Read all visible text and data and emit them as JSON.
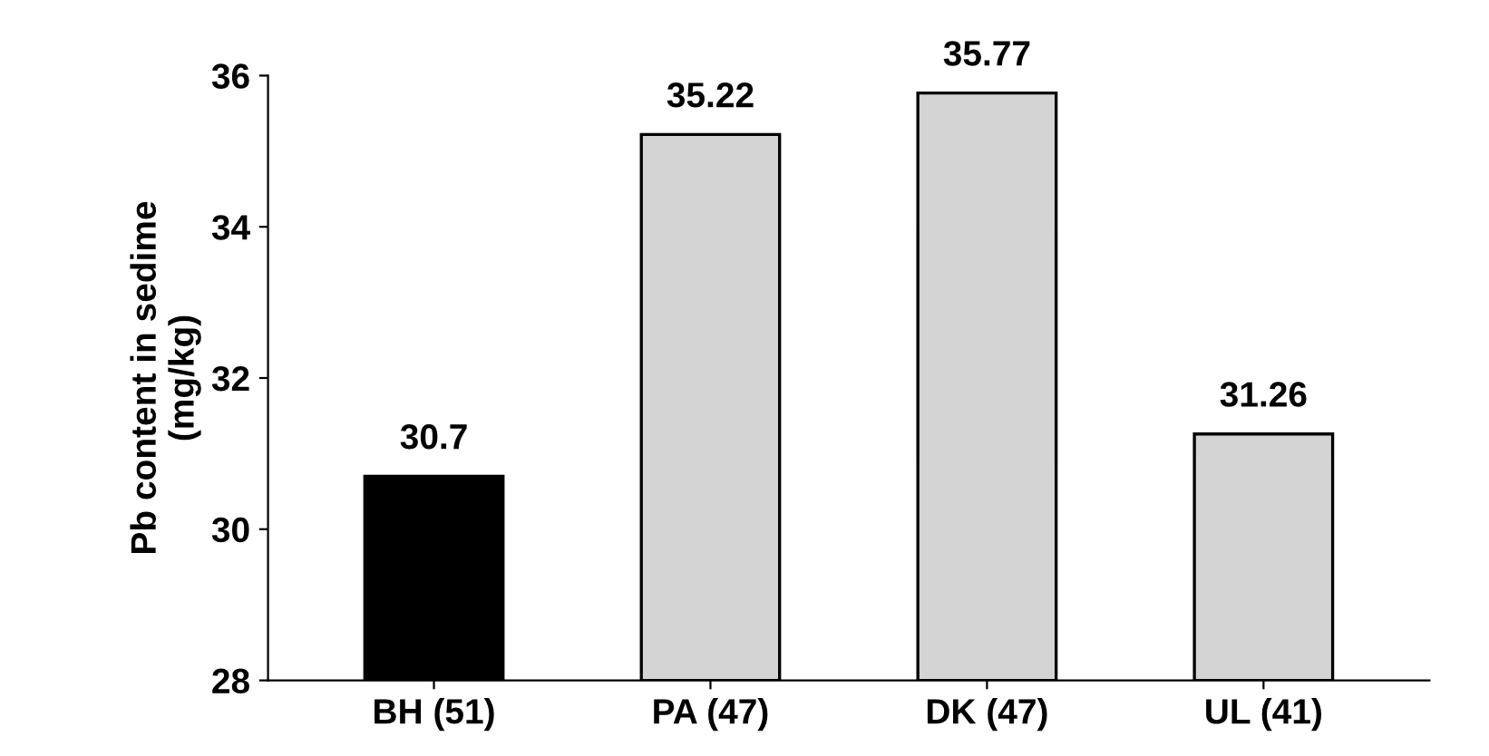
{
  "chart_data": {
    "type": "bar",
    "ylabel": "Pb content in sedime\n(mg/kg)",
    "categories": [
      "BH (51)",
      "PA (47)",
      "DK (47)",
      "UL (41)"
    ],
    "values": [
      30.7,
      35.22,
      35.77,
      31.26
    ],
    "colors": [
      "#000000",
      "#d4d4d4",
      "#d4d4d4",
      "#d4d4d4"
    ],
    "ylim": [
      28,
      36
    ],
    "yticks": [
      28,
      30,
      32,
      34,
      36
    ],
    "data_labels": true,
    "grid": false
  }
}
